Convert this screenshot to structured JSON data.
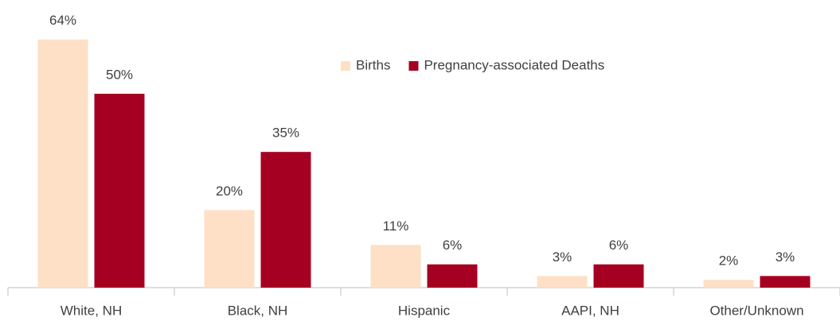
{
  "chart_data": {
    "type": "bar",
    "categories": [
      "White, NH",
      "Black, NH",
      "Hispanic",
      "AAPI, NH",
      "Other/Unknown"
    ],
    "series": [
      {
        "name": "Births",
        "color": "#fde0c5",
        "values": [
          64,
          20,
          11,
          3,
          2
        ],
        "value_labels": [
          "64%",
          "20%",
          "11%",
          "3%",
          "2%"
        ]
      },
      {
        "name": "Pregnancy-associated Deaths",
        "color": "#a50021",
        "values": [
          50,
          35,
          6,
          6,
          3
        ],
        "value_labels": [
          "50%",
          "35%",
          "6%",
          "6%",
          "3%"
        ]
      }
    ],
    "legend": "top-right"
  }
}
